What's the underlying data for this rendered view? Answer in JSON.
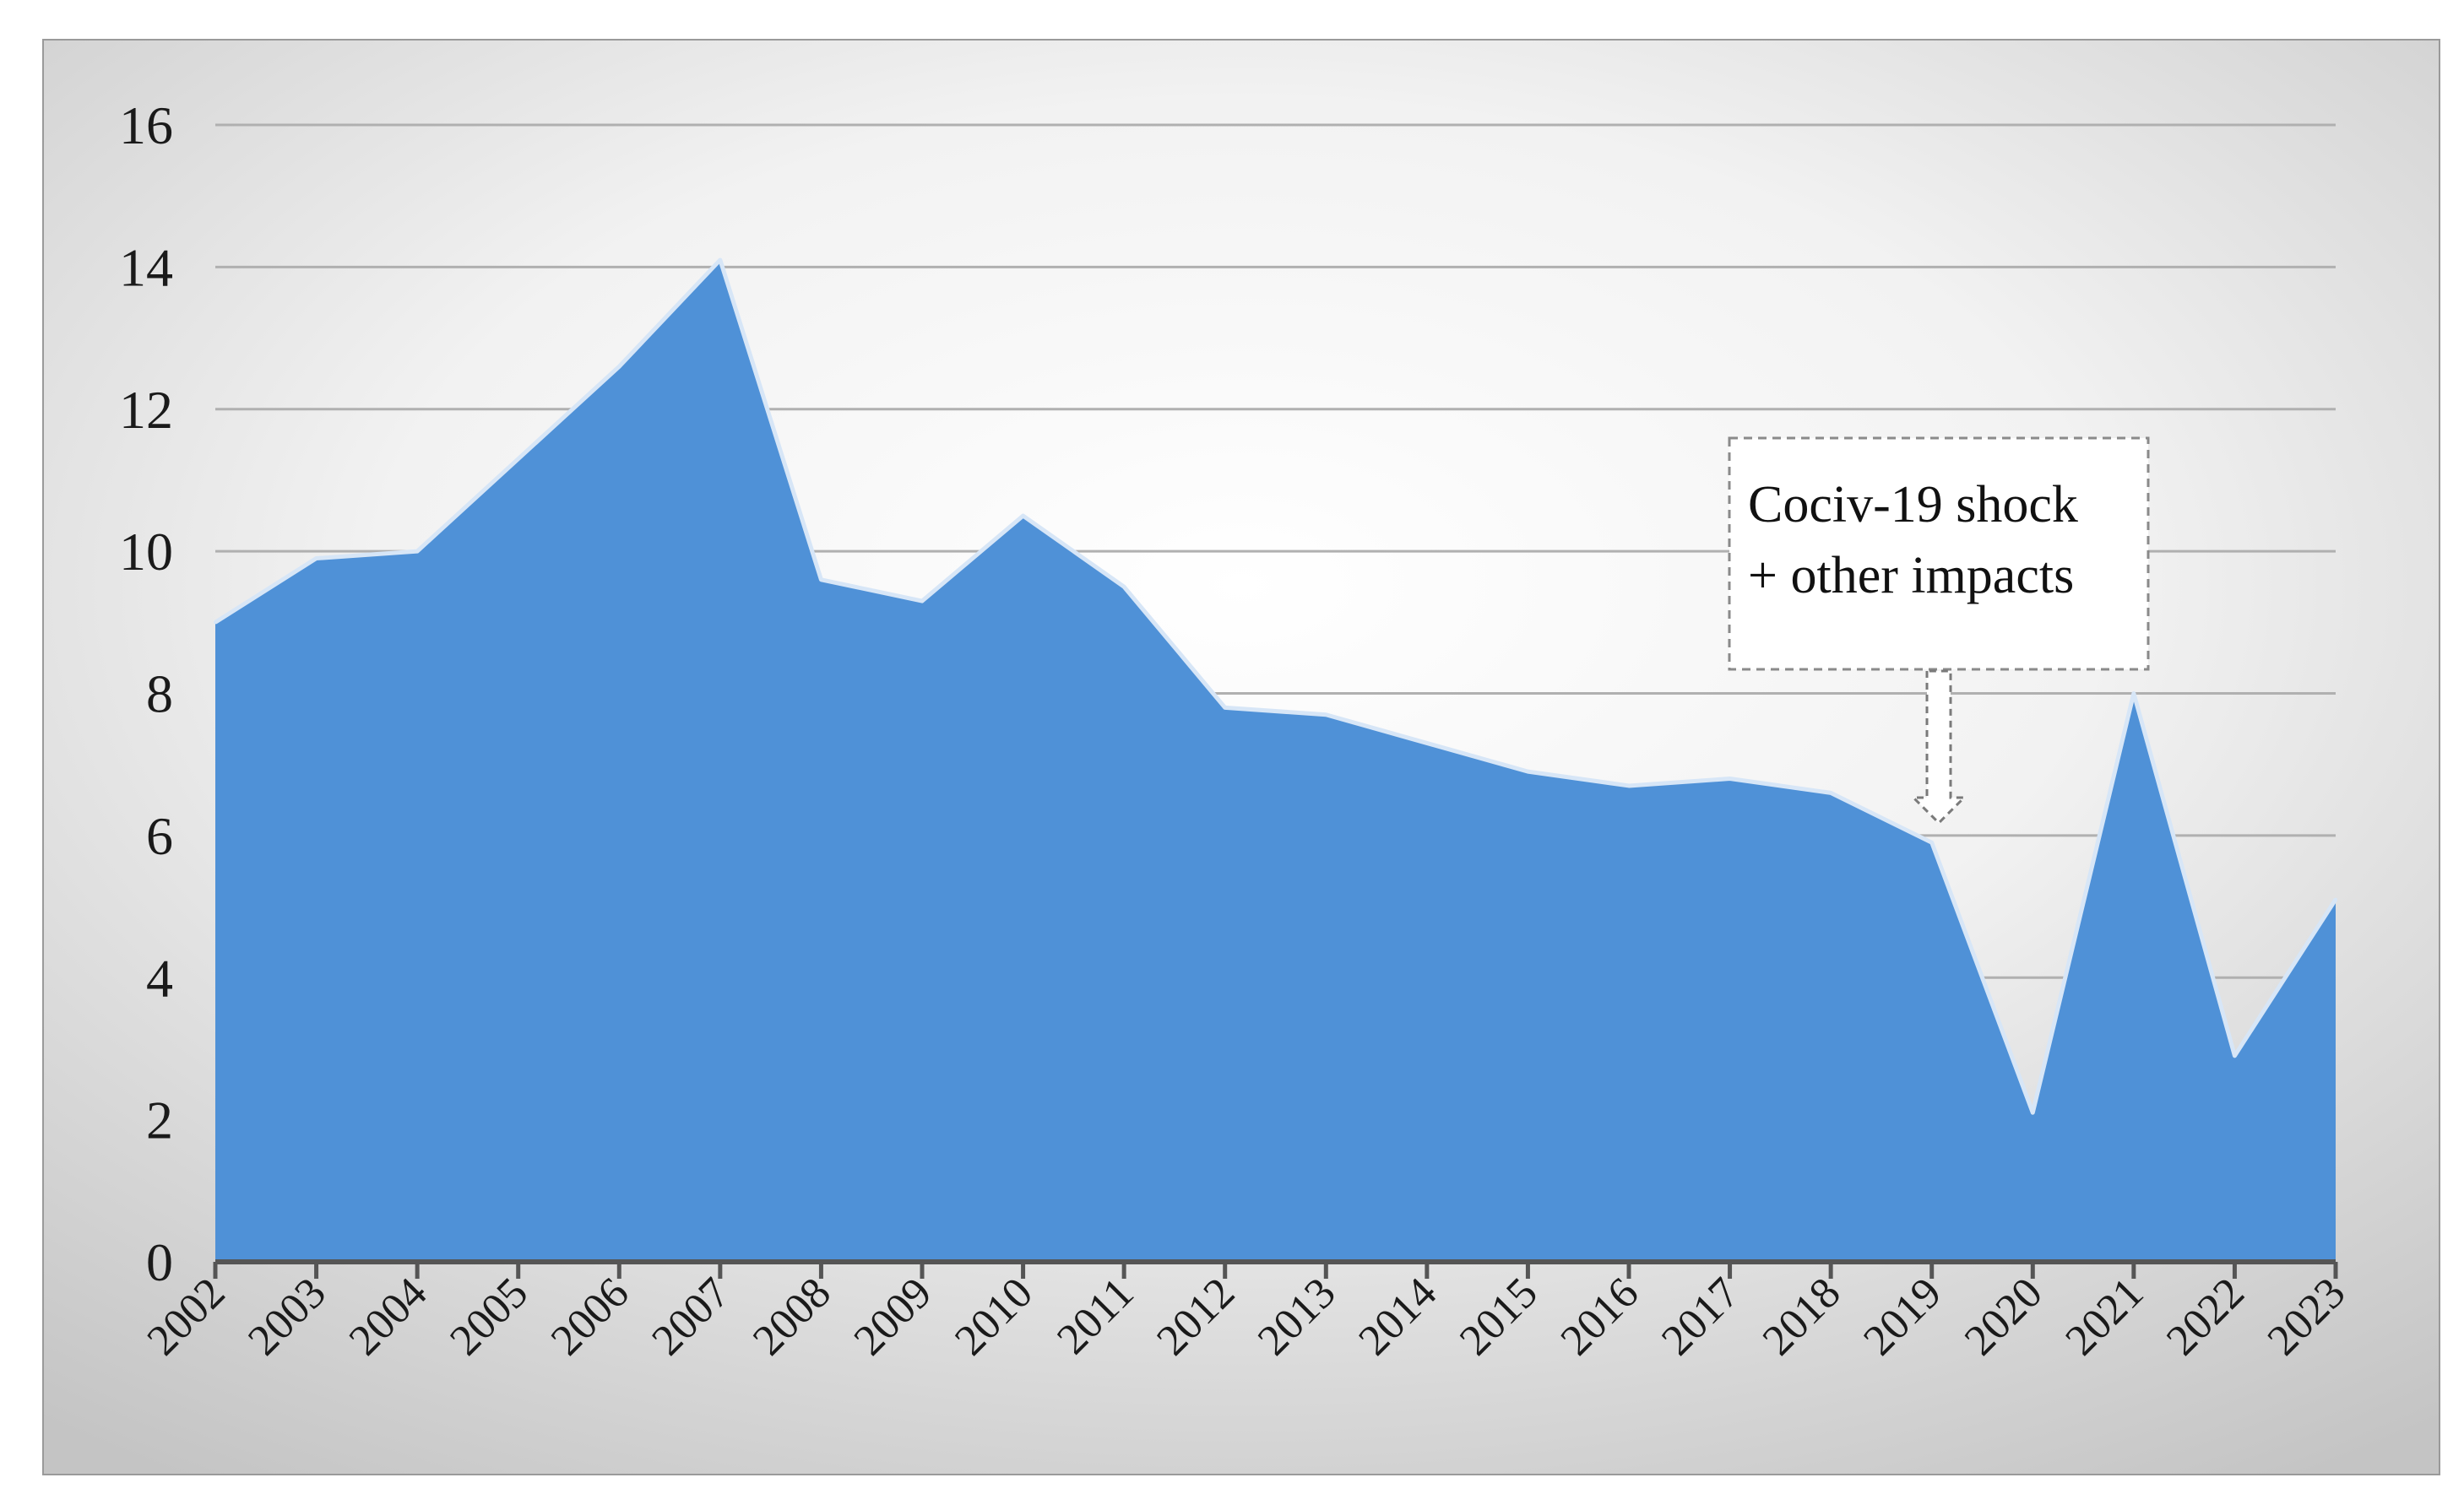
{
  "chart_data": {
    "type": "area",
    "title": "",
    "xlabel": "",
    "ylabel": "",
    "x": [
      "2002",
      "2003",
      "2004",
      "2005",
      "2006",
      "2007",
      "2008",
      "2009",
      "2010",
      "2011",
      "2012",
      "2013",
      "2014",
      "2015",
      "2016",
      "2017",
      "2018",
      "2019",
      "2020",
      "2021",
      "2022",
      "2023"
    ],
    "series": [
      {
        "values": [
          9.0,
          9.9,
          10.0,
          11.3,
          12.6,
          14.1,
          9.6,
          9.3,
          10.5,
          9.5,
          7.8,
          7.7,
          7.3,
          6.9,
          6.7,
          6.8,
          6.6,
          5.9,
          2.1,
          8.0,
          2.9,
          5.1
        ]
      }
    ],
    "ylim": [
      0,
      16
    ],
    "yticks": [
      "0",
      "2",
      "4",
      "6",
      "8",
      "10",
      "12",
      "14",
      "16"
    ],
    "grid": true,
    "legend": "none",
    "annotation": {
      "line1": "Cociv-19 shock",
      "line2": "+ other impacts",
      "points_to": "2019"
    },
    "colors": {
      "fill": "#4f91d7",
      "edge": "#d7e6f7",
      "grid": "#b0b0b0",
      "axis": "#555555"
    }
  }
}
